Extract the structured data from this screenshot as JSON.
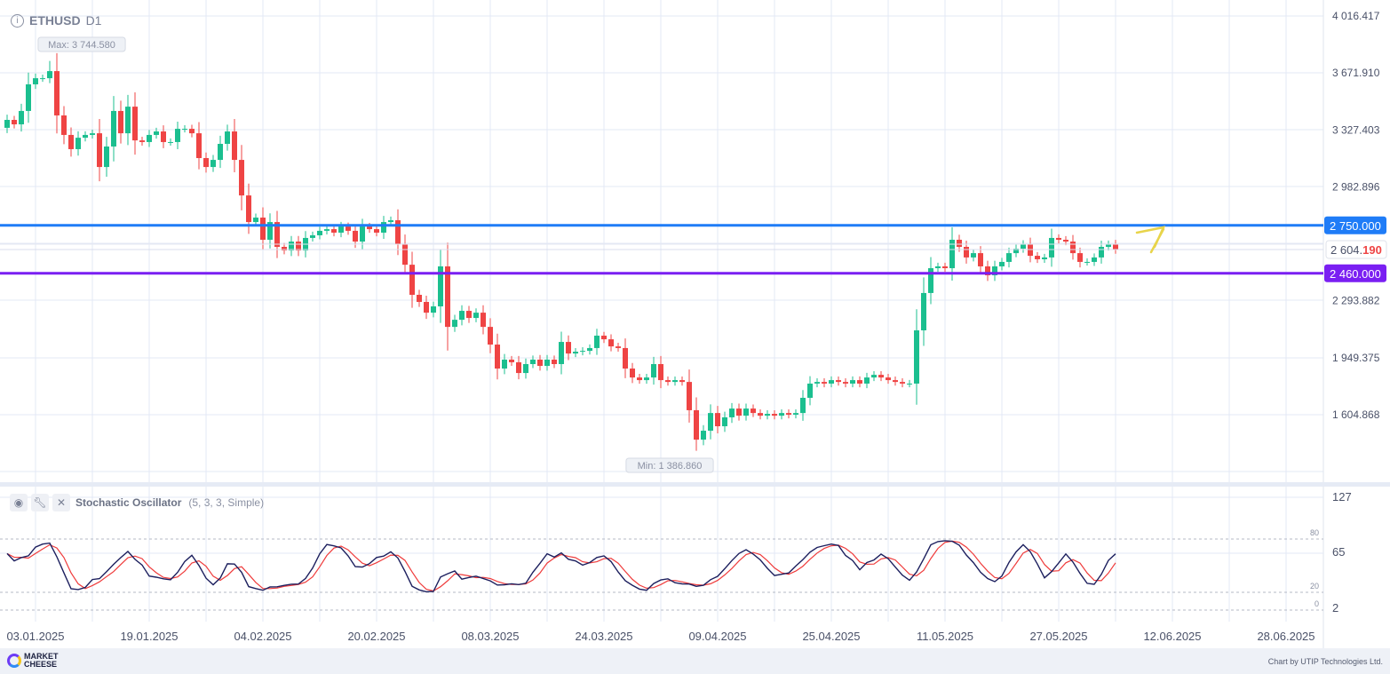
{
  "header": {
    "symbol": "ETHUSD",
    "timeframe": "D1",
    "info_icon": "info-icon"
  },
  "chart_data": {
    "type": "candlestick",
    "symbol": "ETHUSD",
    "timeframe": "D1",
    "start_date": "30.12.2024",
    "closes": [
      3388,
      3361,
      3442,
      3603,
      3640,
      3640,
      3683,
      3415,
      3297,
      3211,
      3280,
      3297,
      3307,
      3103,
      3227,
      3442,
      3307,
      3468,
      3264,
      3254,
      3297,
      3318,
      3254,
      3254,
      3334,
      3334,
      3307,
      3157,
      3103,
      3146,
      3243,
      3318,
      3146,
      2931,
      2770,
      2797,
      2663,
      2770,
      2620,
      2598,
      2652,
      2598,
      2674,
      2690,
      2717,
      2727,
      2706,
      2743,
      2717,
      2652,
      2743,
      2727,
      2706,
      2770,
      2781,
      2636,
      2512,
      2330,
      2287,
      2222,
      2260,
      2502,
      2136,
      2179,
      2233,
      2190,
      2222,
      2136,
      2029,
      1884,
      1938,
      1922,
      1857,
      1911,
      1938,
      1900,
      1938,
      1911,
      2045,
      1975,
      1986,
      1991,
      2008,
      2083,
      2061,
      2018,
      2008,
      1884,
      1830,
      1814,
      1830,
      1911,
      1814,
      1803,
      1814,
      1803,
      1632,
      1454,
      1508,
      1615,
      1535,
      1589,
      1642,
      1599,
      1642,
      1615,
      1599,
      1610,
      1599,
      1615,
      1605,
      1615,
      1707,
      1793,
      1803,
      1793,
      1814,
      1803,
      1793,
      1814,
      1793,
      1830,
      1846,
      1830,
      1814,
      1803,
      1793,
      1793,
      2115,
      2341,
      2491,
      2502,
      2491,
      2663,
      2620,
      2556,
      2582,
      2502,
      2448,
      2502,
      2529,
      2582,
      2609,
      2636,
      2566,
      2545,
      2556,
      2674,
      2663,
      2652,
      2582,
      2529,
      2529,
      2556,
      2620,
      2636,
      2604.19
    ],
    "first_open": 3340,
    "max_label": "Max: 3 744.580",
    "max_value": 3744.58,
    "min_label": "Min: 1 386.860",
    "min_value": 1386.86,
    "y_ticks": [
      "4 016.417",
      "3 671.910",
      "3 327.403",
      "2 982.896",
      "2 293.882",
      "1 949.375",
      "1 604.868"
    ],
    "y_tick_values": [
      4016.417,
      3671.91,
      3327.403,
      2982.896,
      2293.882,
      1949.375,
      1604.868
    ],
    "ylim": [
      1260.361,
      4016.417
    ],
    "x_ticks": [
      "03.01.2025",
      "19.01.2025",
      "04.02.2025",
      "20.02.2025",
      "08.03.2025",
      "24.03.2025",
      "09.04.2025",
      "25.04.2025",
      "11.05.2025",
      "27.05.2025",
      "12.06.2025",
      "28.06.2025"
    ],
    "levels": [
      {
        "label": "2 750.000",
        "value": 2750,
        "color": "#1f7cf7"
      },
      {
        "label": "2 460.000",
        "value": 2460,
        "color": "#7a1ff2"
      }
    ],
    "current_price": {
      "main": "2 604.",
      "tail": "190",
      "value": 2604.19
    },
    "annotation": "yellow up arrow",
    "colors": {
      "up": "#1bbf8f",
      "down": "#ef4444"
    },
    "oscillator": {
      "name": "Stochastic Oscillator",
      "params": "(5, 3, 3, Simple)",
      "y_ticks": [
        "127",
        "65",
        "2"
      ],
      "y_tick_values": [
        127,
        65,
        2
      ],
      "levels": [
        "80",
        "20",
        "0"
      ],
      "level_values": [
        80,
        20,
        0
      ],
      "k_color": "#1c1f5e",
      "d_color": "#ef3b3b"
    }
  },
  "footer": {
    "brand_line1": "MARKET",
    "brand_line2": "CHEESE",
    "credit": "Chart by UTIP Technologies Ltd."
  }
}
